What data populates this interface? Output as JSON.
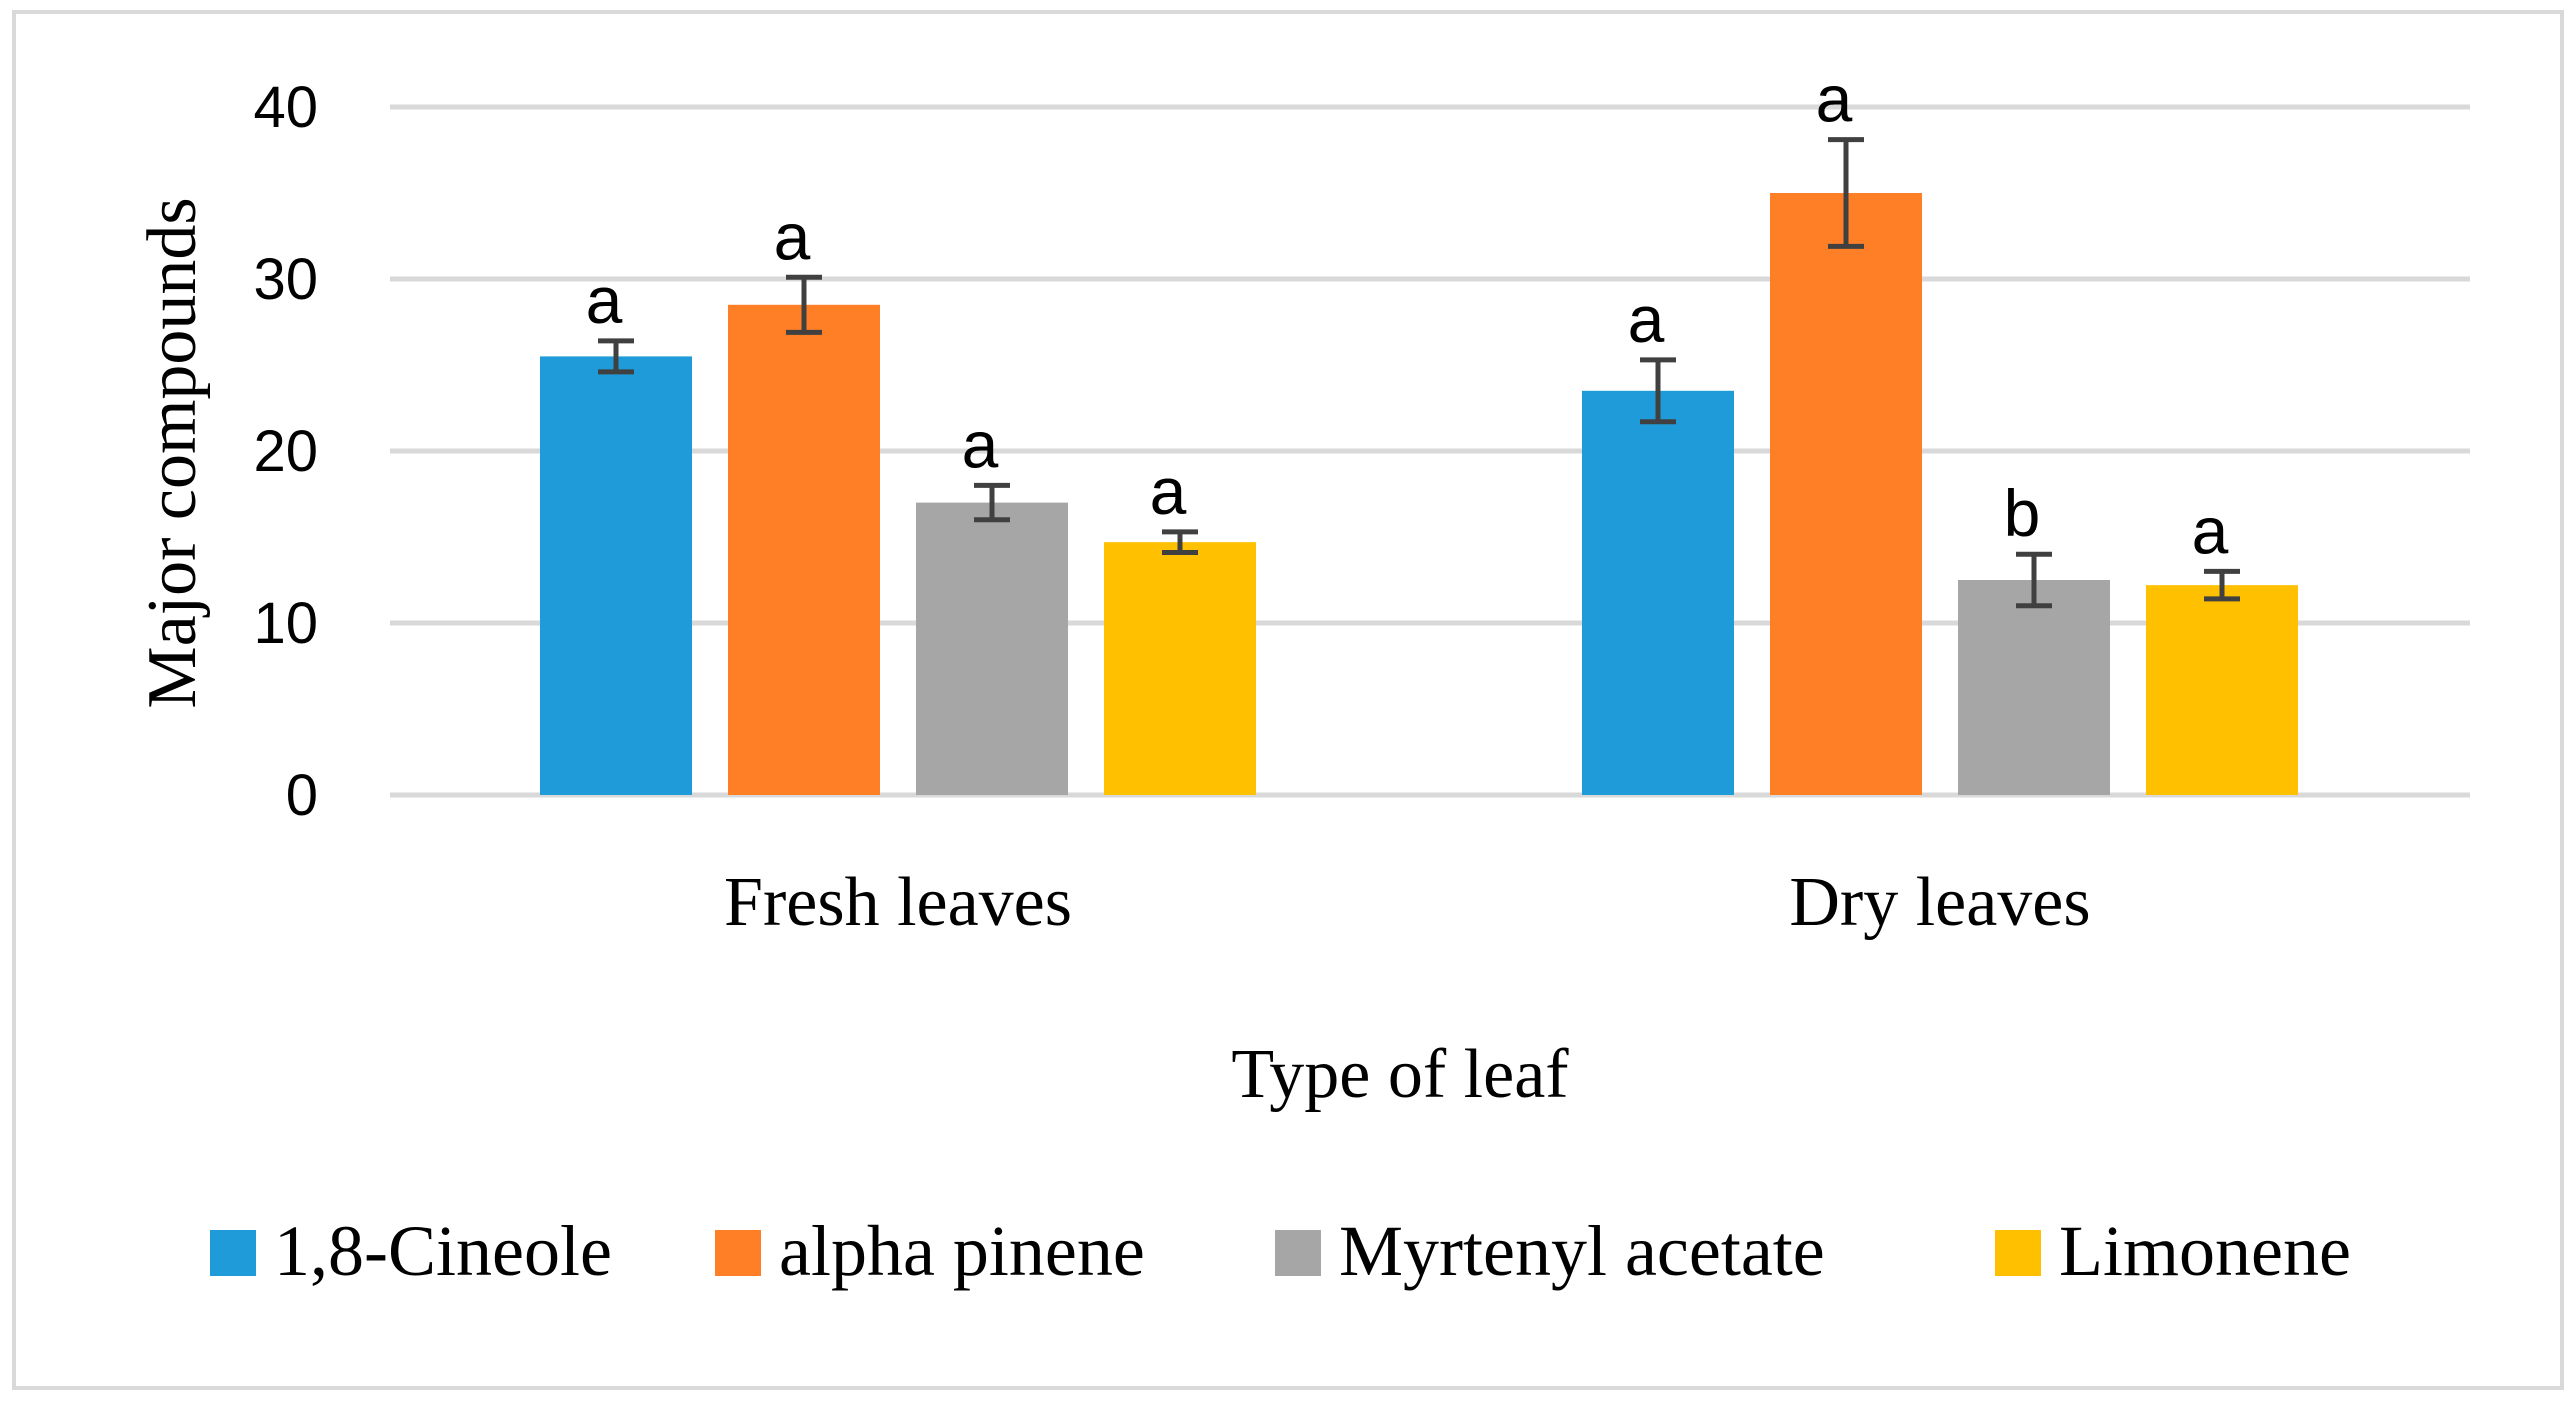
{
  "chart_data": {
    "type": "bar",
    "title": "",
    "xlabel": "Type of leaf",
    "ylabel": "Major compounds",
    "ylim": [
      0,
      40
    ],
    "yticks": [
      0,
      10,
      20,
      30,
      40
    ],
    "grid": true,
    "legend_position": "bottom",
    "categories": [
      "Fresh leaves",
      "Dry leaves"
    ],
    "series": [
      {
        "name": "1,8-Cineole",
        "color": "#1F9BD9",
        "values": [
          25.5,
          23.5
        ],
        "errors": [
          0.9,
          1.8
        ],
        "labels": [
          "a",
          "a"
        ]
      },
      {
        "name": "alpha pinene",
        "color": "#FF7F27",
        "values": [
          28.5,
          35.0
        ],
        "errors": [
          1.6,
          3.1
        ],
        "labels": [
          "a",
          "a"
        ]
      },
      {
        "name": "Myrtenyl acetate",
        "color": "#A6A6A6",
        "values": [
          17.0,
          12.5
        ],
        "errors": [
          1.0,
          1.5
        ],
        "labels": [
          "a",
          "b"
        ]
      },
      {
        "name": "Limonene",
        "color": "#FFC000",
        "values": [
          14.7,
          12.2
        ],
        "errors": [
          0.6,
          0.8
        ],
        "labels": [
          "a",
          "a"
        ]
      }
    ]
  }
}
